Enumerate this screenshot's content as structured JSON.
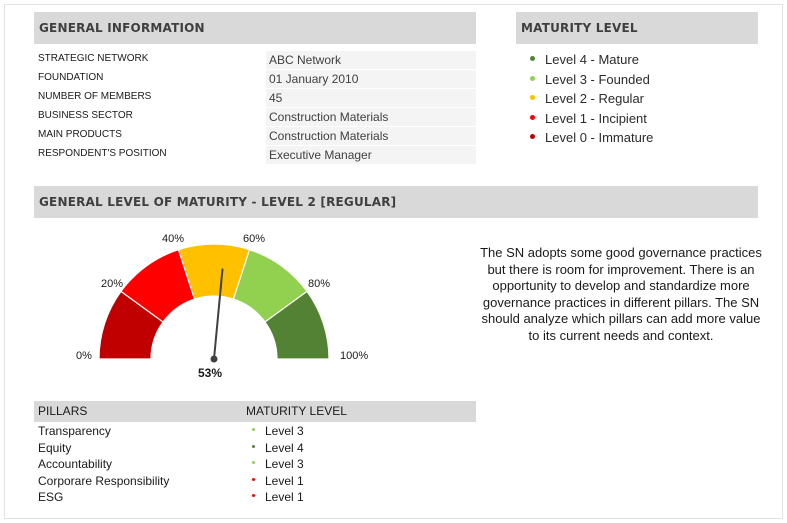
{
  "colors": {
    "level4": "#548235",
    "level3": "#92d050",
    "level2": "#ffc000",
    "level1": "#ff0000",
    "level0": "#c00000",
    "header_bg": "#d9d9d9"
  },
  "general_info": {
    "title": "GENERAL INFORMATION",
    "rows": [
      {
        "label": "STRATEGIC NETWORK",
        "value": "ABC Network"
      },
      {
        "label": "FOUNDATION",
        "value": "01 January 2010"
      },
      {
        "label": "NUMBER OF MEMBERS",
        "value": "45"
      },
      {
        "label": "BUSINESS SECTOR",
        "value": "Construction Materials"
      },
      {
        "label": "MAIN PRODUCTS",
        "value": "Construction Materials"
      },
      {
        "label": "RESPONDENT'S POSITION",
        "value": "Executive Manager"
      }
    ]
  },
  "maturity_legend": {
    "title": "MATURITY LEVEL",
    "items": [
      {
        "label": "Level 4 - Mature",
        "color": "#548235"
      },
      {
        "label": "Level 3 - Founded",
        "color": "#92d050"
      },
      {
        "label": "Level 2 - Regular",
        "color": "#ffc000"
      },
      {
        "label": "Level 1 - Incipient",
        "color": "#ff0000"
      },
      {
        "label": "Level 0 - Immature",
        "color": "#c00000"
      }
    ]
  },
  "general_level": {
    "title": "GENERAL LEVEL OF MATURITY - LEVEL 2 [REGULAR]",
    "gauge": {
      "value_percent": 53,
      "value_label": "53%",
      "ticks": [
        "0%",
        "20%",
        "40%",
        "60%",
        "80%",
        "100%"
      ]
    },
    "description": "The SN adopts some good governance practices but there is room for improvement. There is an opportunity to develop and standardize more governance practices in different pillars. The SN should analyze which pillars can add more value to its current needs and context."
  },
  "pillars": {
    "header_pillars": "PILLARS",
    "header_level": "MATURITY LEVEL",
    "rows": [
      {
        "name": "Transparency",
        "level": "Level 3",
        "color": "#92d050"
      },
      {
        "name": "Equity",
        "level": "Level 4",
        "color": "#548235"
      },
      {
        "name": "Accountability",
        "level": "Level 3",
        "color": "#92d050"
      },
      {
        "name": "Corporare Responsibility",
        "level": "Level 1",
        "color": "#ff0000"
      },
      {
        "name": "ESG",
        "level": "Level 1",
        "color": "#ff0000"
      }
    ]
  }
}
